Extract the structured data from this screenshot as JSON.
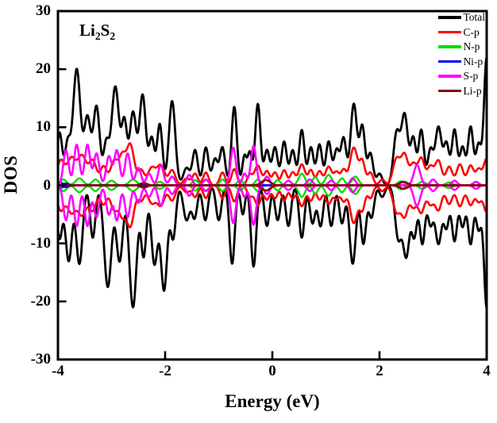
{
  "chart_data": {
    "type": "line",
    "title": "Li2S2",
    "annotation": "Li2S2",
    "xlabel": "Energy (eV)",
    "ylabel": "DOS",
    "xlim": [
      -4,
      4
    ],
    "ylim": [
      -30,
      30
    ],
    "x_tick_labels": [
      "-4",
      "-2",
      "0",
      "2",
      "4"
    ],
    "x_tick_values": [
      -4,
      -2,
      0,
      2,
      4
    ],
    "y_tick_labels": [
      "30",
      "20",
      "10",
      "0",
      "-10",
      "-20",
      "-30"
    ],
    "y_tick_values": [
      30,
      20,
      10,
      0,
      -10,
      -20,
      -30
    ],
    "grid": false,
    "legend_position": "top-right-inside",
    "spin_mirrored": true,
    "frame_color": "#000000",
    "peak_format": [
      "center_eV",
      "height",
      "sigma_eV"
    ],
    "series": [
      {
        "name": "Total",
        "color": "#000000",
        "line_width": 2.8,
        "peaks": [
          [
            -3.97,
            9,
            0.05
          ],
          [
            -3.82,
            7,
            0.05
          ],
          [
            -3.65,
            20,
            0.07
          ],
          [
            -3.45,
            11.5,
            0.06
          ],
          [
            -3.28,
            13.5,
            0.06
          ],
          [
            -3.1,
            7,
            0.05
          ],
          [
            -2.93,
            17,
            0.07
          ],
          [
            -2.76,
            10.5,
            0.05
          ],
          [
            -2.6,
            12.5,
            0.06
          ],
          [
            -2.42,
            15.5,
            0.06
          ],
          [
            -2.25,
            8,
            0.05
          ],
          [
            -2.1,
            10.5,
            0.05
          ],
          [
            -1.87,
            14.5,
            0.06
          ],
          [
            -1.6,
            3,
            0.06
          ],
          [
            -1.44,
            6,
            0.05
          ],
          [
            -1.24,
            6.5,
            0.05
          ],
          [
            -1.07,
            4.5,
            0.05
          ],
          [
            -0.93,
            6.5,
            0.05
          ],
          [
            -0.71,
            13.5,
            0.05
          ],
          [
            -0.52,
            5,
            0.04
          ],
          [
            -0.42,
            5.5,
            0.04
          ],
          [
            -0.27,
            14,
            0.05
          ],
          [
            -0.1,
            6,
            0.05
          ],
          [
            0.05,
            6.5,
            0.05
          ],
          [
            0.22,
            7.5,
            0.05
          ],
          [
            0.38,
            6,
            0.05
          ],
          [
            0.55,
            9.5,
            0.05
          ],
          [
            0.72,
            6.5,
            0.05
          ],
          [
            0.88,
            7,
            0.05
          ],
          [
            1.05,
            7.5,
            0.05
          ],
          [
            1.2,
            6,
            0.05
          ],
          [
            1.33,
            8,
            0.05
          ],
          [
            1.52,
            14,
            0.06
          ],
          [
            1.68,
            10,
            0.05
          ],
          [
            1.83,
            5.5,
            0.05
          ],
          [
            2.0,
            2,
            0.05
          ],
          [
            2.32,
            9,
            0.06
          ],
          [
            2.47,
            12,
            0.06
          ],
          [
            2.63,
            8,
            0.05
          ],
          [
            2.78,
            9.5,
            0.05
          ],
          [
            2.95,
            6,
            0.05
          ],
          [
            3.1,
            10,
            0.06
          ],
          [
            3.25,
            7,
            0.05
          ],
          [
            3.4,
            9.5,
            0.05
          ],
          [
            3.55,
            6.5,
            0.05
          ],
          [
            3.7,
            10,
            0.05
          ],
          [
            3.85,
            7,
            0.05
          ],
          [
            4.0,
            22,
            0.05
          ]
        ],
        "peaks_down": [
          [
            -3.97,
            9,
            0.05
          ],
          [
            -3.8,
            13,
            0.06
          ],
          [
            -3.6,
            13.5,
            0.06
          ],
          [
            -3.35,
            9,
            0.05
          ],
          [
            -3.07,
            17.5,
            0.07
          ],
          [
            -2.85,
            13,
            0.06
          ],
          [
            -2.6,
            21,
            0.07
          ],
          [
            -2.4,
            12,
            0.05
          ],
          [
            -2.2,
            13.5,
            0.06
          ],
          [
            -2.02,
            18,
            0.06
          ],
          [
            -1.85,
            9,
            0.05
          ],
          [
            -1.6,
            6,
            0.06
          ],
          [
            -1.45,
            5.5,
            0.05
          ],
          [
            -1.25,
            6,
            0.05
          ],
          [
            -1.0,
            6,
            0.05
          ],
          [
            -0.75,
            13.5,
            0.05
          ],
          [
            -0.55,
            5,
            0.04
          ],
          [
            -0.35,
            14,
            0.05
          ],
          [
            -0.1,
            7,
            0.05
          ],
          [
            0.1,
            6,
            0.05
          ],
          [
            0.3,
            7,
            0.05
          ],
          [
            0.55,
            9,
            0.05
          ],
          [
            0.75,
            6.5,
            0.05
          ],
          [
            0.9,
            7,
            0.05
          ],
          [
            1.1,
            7,
            0.05
          ],
          [
            1.3,
            6.5,
            0.05
          ],
          [
            1.5,
            13.5,
            0.06
          ],
          [
            1.7,
            10,
            0.05
          ],
          [
            1.85,
            5.5,
            0.05
          ],
          [
            2.05,
            2,
            0.05
          ],
          [
            2.35,
            9,
            0.06
          ],
          [
            2.5,
            12,
            0.06
          ],
          [
            2.65,
            8.5,
            0.05
          ],
          [
            2.8,
            10,
            0.05
          ],
          [
            2.95,
            6.5,
            0.05
          ],
          [
            3.1,
            10,
            0.06
          ],
          [
            3.25,
            7,
            0.05
          ],
          [
            3.4,
            9.5,
            0.05
          ],
          [
            3.55,
            7,
            0.05
          ],
          [
            3.7,
            10,
            0.05
          ],
          [
            3.85,
            7.5,
            0.05
          ],
          [
            4.0,
            21,
            0.05
          ]
        ]
      },
      {
        "name": "C-p",
        "color": "#ff0000",
        "line_width": 2.6,
        "peaks": [
          [
            -3.95,
            4.2,
            0.07
          ],
          [
            -3.75,
            4.6,
            0.08
          ],
          [
            -3.55,
            5,
            0.08
          ],
          [
            -3.35,
            4.2,
            0.07
          ],
          [
            -3.15,
            3.2,
            0.06
          ],
          [
            -2.95,
            4.2,
            0.07
          ],
          [
            -2.8,
            4.6,
            0.06
          ],
          [
            -2.65,
            7,
            0.07
          ],
          [
            -2.45,
            2.6,
            0.06
          ],
          [
            -2.25,
            3,
            0.07
          ],
          [
            -2.08,
            3.4,
            0.07
          ],
          [
            -1.87,
            2.6,
            0.06
          ],
          [
            -1.6,
            1.2,
            0.06
          ],
          [
            -1.44,
            2,
            0.05
          ],
          [
            -1.24,
            2.2,
            0.05
          ],
          [
            -0.93,
            2.2,
            0.05
          ],
          [
            -0.71,
            2.8,
            0.05
          ],
          [
            -0.42,
            1.8,
            0.05
          ],
          [
            -0.27,
            3.4,
            0.06
          ],
          [
            -0.1,
            2.4,
            0.05
          ],
          [
            0.05,
            2.2,
            0.05
          ],
          [
            0.22,
            2.6,
            0.05
          ],
          [
            0.38,
            2.2,
            0.05
          ],
          [
            0.55,
            3.6,
            0.06
          ],
          [
            0.72,
            2.6,
            0.05
          ],
          [
            0.88,
            2.4,
            0.05
          ],
          [
            1.05,
            3.2,
            0.06
          ],
          [
            1.2,
            2.2,
            0.05
          ],
          [
            1.33,
            2.6,
            0.05
          ],
          [
            1.52,
            6.5,
            0.07
          ],
          [
            1.68,
            4,
            0.05
          ],
          [
            1.83,
            2.2,
            0.05
          ],
          [
            2.05,
            1,
            0.05
          ],
          [
            2.32,
            4.6,
            0.07
          ],
          [
            2.47,
            5,
            0.06
          ],
          [
            2.63,
            3.6,
            0.06
          ],
          [
            2.78,
            4.6,
            0.06
          ],
          [
            2.95,
            3.2,
            0.06
          ],
          [
            3.1,
            4.2,
            0.06
          ],
          [
            3.3,
            3.2,
            0.06
          ],
          [
            3.5,
            3.6,
            0.06
          ],
          [
            3.7,
            3.4,
            0.06
          ],
          [
            3.85,
            2.6,
            0.05
          ],
          [
            4.0,
            4.6,
            0.06
          ]
        ]
      },
      {
        "name": "N-p",
        "color": "#00dd00",
        "line_width": 2.4,
        "peaks": [
          [
            -3.9,
            1,
            0.06
          ],
          [
            -3.6,
            1.2,
            0.07
          ],
          [
            -3.3,
            1,
            0.06
          ],
          [
            -3.0,
            0.8,
            0.06
          ],
          [
            -2.6,
            1,
            0.07
          ],
          [
            -2.1,
            0.6,
            0.06
          ],
          [
            -1.44,
            0.9,
            0.05
          ],
          [
            -1.24,
            0.9,
            0.05
          ],
          [
            -0.93,
            1,
            0.05
          ],
          [
            -0.6,
            0.9,
            0.05
          ],
          [
            -0.27,
            1,
            0.05
          ],
          [
            0.1,
            0.9,
            0.05
          ],
          [
            0.55,
            2,
            0.06
          ],
          [
            0.8,
            1.4,
            0.05
          ],
          [
            1.05,
            1.8,
            0.06
          ],
          [
            1.3,
            1.2,
            0.05
          ],
          [
            1.55,
            1.5,
            0.06
          ],
          [
            2.4,
            0.7,
            0.06
          ],
          [
            2.8,
            0.6,
            0.06
          ],
          [
            3.3,
            0.5,
            0.06
          ]
        ]
      },
      {
        "name": "Ni-p",
        "color": "#0000ee",
        "line_width": 2.4,
        "peaks": [
          [
            -3.97,
            0.5,
            0.04
          ],
          [
            -3.85,
            0.3,
            0.05
          ]
        ]
      },
      {
        "name": "S-p",
        "color": "#ff00ff",
        "line_width": 2.6,
        "peaks": [
          [
            -3.85,
            6,
            0.05
          ],
          [
            -3.65,
            7,
            0.05
          ],
          [
            -3.45,
            7,
            0.05
          ],
          [
            -3.28,
            5.5,
            0.05
          ],
          [
            -3.05,
            5,
            0.05
          ],
          [
            -2.9,
            6,
            0.05
          ],
          [
            -2.7,
            5.5,
            0.05
          ],
          [
            -2.5,
            3,
            0.05
          ],
          [
            -2.3,
            2,
            0.05
          ],
          [
            -2.08,
            3.5,
            0.05
          ],
          [
            -1.87,
            1.5,
            0.05
          ],
          [
            -1.55,
            1.8,
            0.05
          ],
          [
            -1.24,
            1,
            0.05
          ],
          [
            -0.73,
            6.5,
            0.05
          ],
          [
            -0.52,
            2,
            0.04
          ],
          [
            -0.35,
            6.8,
            0.05
          ],
          [
            -0.1,
            1.5,
            0.05
          ],
          [
            0.3,
            0.8,
            0.05
          ],
          [
            0.7,
            1,
            0.05
          ],
          [
            1.1,
            0.8,
            0.05
          ],
          [
            1.5,
            1.2,
            0.05
          ],
          [
            2.7,
            3.5,
            0.06
          ],
          [
            3.0,
            1,
            0.05
          ],
          [
            3.4,
            0.8,
            0.05
          ],
          [
            3.8,
            0.6,
            0.05
          ]
        ]
      },
      {
        "name": "Li-p",
        "color": "#8b0000",
        "line_width": 2.6,
        "peaks": [
          [
            -2.4,
            0.4,
            0.06
          ],
          [
            -0.12,
            0.9,
            0.08
          ],
          [
            2.45,
            0.6,
            0.07
          ]
        ]
      }
    ]
  }
}
